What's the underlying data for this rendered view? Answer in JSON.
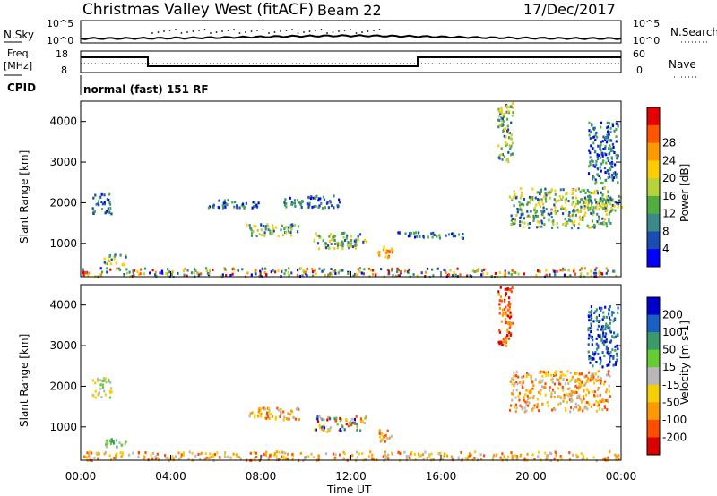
{
  "header": {
    "station": "Christmas Valley West (fitACF)",
    "beam": "Beam 22",
    "date": "17/Dec/2017"
  },
  "panels": {
    "nsky_label": "N.Sky",
    "nsearch_label": "N.Search",
    "freq_label_1": "Freq.",
    "freq_label_2": "[MHz]",
    "nave_label": "Nave",
    "cpid_label": "CPID",
    "cpid_value": "normal (fast) 151 RF",
    "noise_ticks_left": [
      "10^5",
      "10^0"
    ],
    "noise_ticks_right": [
      "10^5",
      "10^0"
    ],
    "freq_ticks": [
      "18",
      "8"
    ],
    "nave_ticks": [
      "60",
      "0"
    ]
  },
  "colors": {
    "power": [
      "#0000ff",
      "#1a4db3",
      "#3a8a8a",
      "#4fae3f",
      "#b8d23a",
      "#ffcc00",
      "#ff9900",
      "#ff5500",
      "#e60000"
    ],
    "velocity": [
      "#0000cc",
      "#1a5fc4",
      "#3a9a6a",
      "#66cc33",
      "#b8b8b8",
      "#f5d000",
      "#ff9900",
      "#ff4d00",
      "#dd0000"
    ]
  },
  "chart_data": [
    {
      "type": "heatmap",
      "quantity": "Power",
      "ylabel": "Slant Range [km]",
      "yticks": [
        "1000",
        "2000",
        "3000",
        "4000"
      ],
      "ylim": [
        180,
        4500
      ],
      "colorbar_label": "Power [dB]",
      "colorbar_ticks": [
        "4",
        "8",
        "12",
        "16",
        "20",
        "24",
        "28"
      ],
      "xlim": [
        "00:00",
        "24:00"
      ],
      "echo_regions": [
        {
          "start": "00:00",
          "end": "24:00",
          "range": [
            200,
            420
          ],
          "level": "mixed"
        },
        {
          "start": "00:30",
          "end": "01:20",
          "range": [
            1750,
            2250
          ],
          "level": "low"
        },
        {
          "start": "01:00",
          "end": "02:00",
          "range": [
            500,
            750
          ],
          "level": "medium"
        },
        {
          "start": "05:30",
          "end": "08:00",
          "range": [
            1900,
            2100
          ],
          "level": "low"
        },
        {
          "start": "07:20",
          "end": "09:40",
          "range": [
            1200,
            1500
          ],
          "level": "medium"
        },
        {
          "start": "09:00",
          "end": "11:30",
          "range": [
            1900,
            2200
          ],
          "level": "low"
        },
        {
          "start": "10:20",
          "end": "12:40",
          "range": [
            900,
            1300
          ],
          "level": "medium"
        },
        {
          "start": "13:10",
          "end": "13:50",
          "range": [
            650,
            950
          ],
          "level": "high"
        },
        {
          "start": "14:00",
          "end": "17:00",
          "range": [
            1150,
            1300
          ],
          "level": "low"
        },
        {
          "start": "18:30",
          "end": "19:10",
          "range": [
            3000,
            4500
          ],
          "level": "medium"
        },
        {
          "start": "19:00",
          "end": "23:30",
          "range": [
            1400,
            2400
          ],
          "level": "medium"
        },
        {
          "start": "22:00",
          "end": "24:00",
          "range": [
            1800,
            2200
          ],
          "level": "medium"
        },
        {
          "start": "22:30",
          "end": "23:50",
          "range": [
            2500,
            4000
          ],
          "level": "low"
        }
      ]
    },
    {
      "type": "heatmap",
      "quantity": "Velocity",
      "ylabel": "Slant Range [km]",
      "yticks": [
        "1000",
        "2000",
        "3000",
        "4000"
      ],
      "ylim": [
        180,
        4500
      ],
      "colorbar_label": "Velocity [m s-1]",
      "colorbar_ticks": [
        "200",
        "100",
        "50",
        "15",
        "-15",
        "-50",
        "-100",
        "-200"
      ],
      "xlim": [
        "00:00",
        "24:00"
      ],
      "xticks": [
        "00:00",
        "04:00",
        "08:00",
        "12:00",
        "16:00",
        "20:00",
        "00:00"
      ],
      "xlabel": "Time UT",
      "echo_regions": [
        {
          "start": "00:00",
          "end": "24:00",
          "range": [
            200,
            420
          ],
          "sign": "negative"
        },
        {
          "start": "00:30",
          "end": "01:20",
          "range": [
            1750,
            2250
          ],
          "sign": "near-zero"
        },
        {
          "start": "01:00",
          "end": "02:00",
          "range": [
            500,
            750
          ],
          "sign": "positive"
        },
        {
          "start": "07:20",
          "end": "09:40",
          "range": [
            1200,
            1500
          ],
          "sign": "negative"
        },
        {
          "start": "10:20",
          "end": "12:40",
          "range": [
            900,
            1300
          ],
          "sign": "mixed"
        },
        {
          "start": "13:10",
          "end": "13:50",
          "range": [
            650,
            950
          ],
          "sign": "negative"
        },
        {
          "start": "18:30",
          "end": "19:10",
          "range": [
            3000,
            4500
          ],
          "sign": "strong-negative"
        },
        {
          "start": "19:00",
          "end": "23:30",
          "range": [
            1400,
            2400
          ],
          "sign": "negative"
        },
        {
          "start": "22:30",
          "end": "23:50",
          "range": [
            2500,
            4000
          ],
          "sign": "strong-positive"
        }
      ]
    }
  ]
}
